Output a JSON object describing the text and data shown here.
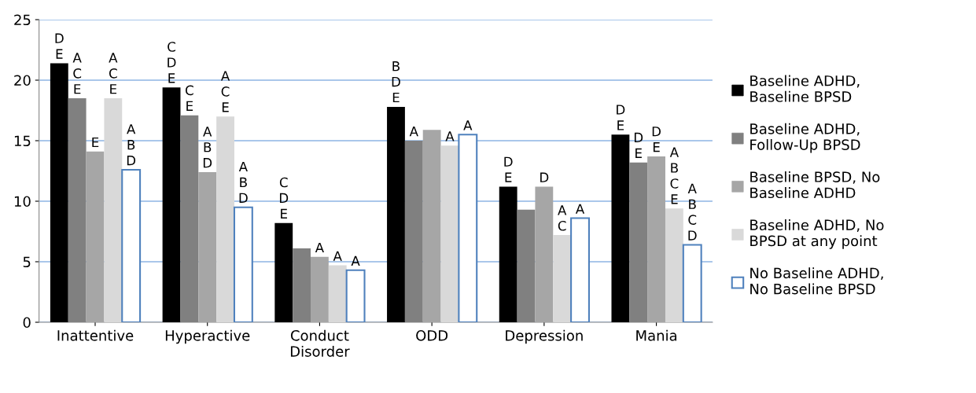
{
  "chart_data": {
    "type": "bar",
    "categories": [
      "Inattentive",
      "Hyperactive",
      "Conduct\nDisorder",
      "ODD",
      "Depression",
      "Mania"
    ],
    "series": [
      {
        "name": "Baseline ADHD,\nBaseline BPSD",
        "color": "#000000",
        "values": [
          21.4,
          19.4,
          8.2,
          17.8,
          11.2,
          15.5
        ],
        "value_labels": [
          "D\nE",
          "C\nD\nE",
          "C\nD\nE",
          "B\nD\nE",
          "D\nE",
          "D\nE"
        ]
      },
      {
        "name": "Baseline ADHD,\nFollow-Up BPSD",
        "color": "#808080",
        "values": [
          18.5,
          17.1,
          6.1,
          15.0,
          9.3,
          13.2
        ],
        "value_labels": [
          "A\nC\nE",
          "C\nE",
          null,
          "A",
          null,
          "D\nE"
        ]
      },
      {
        "name": "Baseline BPSD, No\nBaseline ADHD",
        "color": "#a6a6a6",
        "values": [
          14.1,
          12.4,
          5.4,
          15.9,
          11.2,
          13.7
        ],
        "value_labels": [
          "E",
          "A\nB\nD",
          "A",
          null,
          "D",
          "D\nE"
        ]
      },
      {
        "name": "Baseline ADHD, No\nBPSD at any point",
        "color": "#d9d9d9",
        "values": [
          18.5,
          17.0,
          4.7,
          14.6,
          7.2,
          9.4
        ],
        "value_labels": [
          "A\nC\nE",
          "A\nC\nE",
          "A",
          "A",
          "A\nC",
          "A\nB\nC\nE"
        ]
      },
      {
        "name": "No Baseline ADHD,\nNo Baseline BPSD",
        "color": "#ffffff",
        "values": [
          12.6,
          9.5,
          4.3,
          15.5,
          8.6,
          6.4
        ],
        "value_labels": [
          "A\nB\nD",
          "A\nB\nD",
          "A",
          "A",
          "A",
          "A\nB\nC\nD"
        ]
      }
    ],
    "ylim": [
      0,
      25
    ],
    "yticks": [
      0,
      5,
      10,
      15,
      20,
      25
    ],
    "grid": "y",
    "legend": "right"
  }
}
